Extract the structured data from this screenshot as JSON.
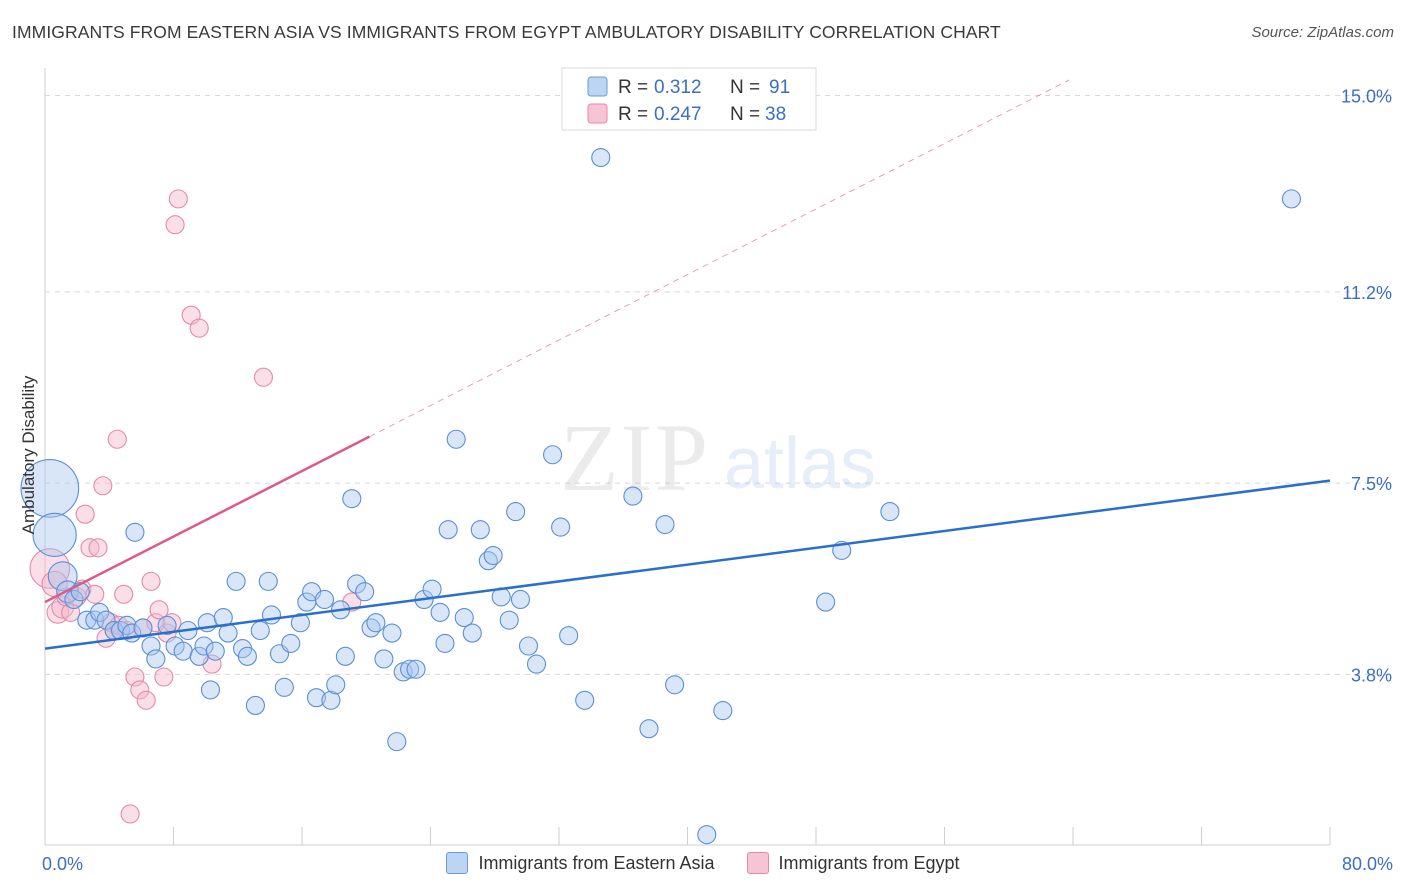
{
  "header": {
    "title": "IMMIGRANTS FROM EASTERN ASIA VS IMMIGRANTS FROM EGYPT AMBULATORY DISABILITY CORRELATION CHART",
    "source": "Source: ZipAtlas.com"
  },
  "watermark": {
    "zip": "ZIP",
    "atlas": "atlas"
  },
  "colors": {
    "blue_fill": "#a8c8f0",
    "blue_stroke": "#5a8fd6",
    "blue_line": "#2a6fcc",
    "pink_fill": "#f6b8cc",
    "pink_stroke": "#e58aa6",
    "pink_line": "#e0588a",
    "axis_label": "#3a6fc4",
    "grid": "#d8d8d8"
  },
  "chart_data": {
    "type": "scatter",
    "title": "IMMIGRANTS FROM EASTERN ASIA VS IMMIGRANTS FROM EGYPT AMBULATORY DISABILITY CORRELATION CHART",
    "xlabel": "",
    "ylabel": "Ambulatory Disability",
    "xlim": [
      0,
      80
    ],
    "ylim": [
      0.5,
      15.3
    ],
    "x_tick_labels": [
      "0.0%",
      "80.0%"
    ],
    "y_ticks": [
      3.8,
      7.5,
      11.2,
      15.0
    ],
    "y_tick_labels": [
      "3.8%",
      "7.5%",
      "11.2%",
      "15.0%"
    ],
    "grid": true,
    "legend_position": "top-center",
    "legend": [
      {
        "r_label": "R =",
        "r_value": "0.312",
        "n_label": "N =",
        "n_value": "91"
      },
      {
        "r_label": "R =",
        "r_value": "0.247",
        "n_label": "N =",
        "n_value": "38"
      }
    ],
    "series": [
      {
        "name": "Immigrants from Eastern Asia",
        "color": "#a8c8f0",
        "trend": {
          "x0": 0,
          "y0": 4.3,
          "x1": 80,
          "y1": 7.55,
          "dashed": false
        },
        "points": [
          {
            "x": 0.3,
            "y": 7.4,
            "s": 3.2
          },
          {
            "x": 0.6,
            "y": 6.5,
            "s": 2.4
          },
          {
            "x": 1.1,
            "y": 5.7,
            "s": 1.6
          },
          {
            "x": 1.4,
            "y": 5.4,
            "s": 1.2
          },
          {
            "x": 1.8,
            "y": 5.25,
            "s": 1
          },
          {
            "x": 2.2,
            "y": 5.4,
            "s": 1
          },
          {
            "x": 2.6,
            "y": 4.85,
            "s": 1
          },
          {
            "x": 3.1,
            "y": 4.85,
            "s": 1
          },
          {
            "x": 3.4,
            "y": 5.0,
            "s": 1
          },
          {
            "x": 3.8,
            "y": 4.85,
            "s": 1
          },
          {
            "x": 4.3,
            "y": 4.65,
            "s": 1
          },
          {
            "x": 4.7,
            "y": 4.65,
            "s": 1
          },
          {
            "x": 5.1,
            "y": 4.75,
            "s": 1
          },
          {
            "x": 5.4,
            "y": 4.6,
            "s": 1
          },
          {
            "x": 5.6,
            "y": 6.55,
            "s": 1
          },
          {
            "x": 6.1,
            "y": 4.7,
            "s": 1
          },
          {
            "x": 6.6,
            "y": 4.35,
            "s": 1
          },
          {
            "x": 6.9,
            "y": 4.1,
            "s": 1
          },
          {
            "x": 7.6,
            "y": 4.75,
            "s": 1
          },
          {
            "x": 8.1,
            "y": 4.35,
            "s": 1
          },
          {
            "x": 8.6,
            "y": 4.25,
            "s": 1
          },
          {
            "x": 8.9,
            "y": 4.65,
            "s": 1
          },
          {
            "x": 9.6,
            "y": 4.15,
            "s": 1
          },
          {
            "x": 9.9,
            "y": 4.35,
            "s": 1
          },
          {
            "x": 10.1,
            "y": 4.8,
            "s": 1
          },
          {
            "x": 10.3,
            "y": 3.5,
            "s": 1
          },
          {
            "x": 10.6,
            "y": 4.25,
            "s": 1
          },
          {
            "x": 11.1,
            "y": 4.9,
            "s": 1
          },
          {
            "x": 11.4,
            "y": 4.6,
            "s": 1
          },
          {
            "x": 11.9,
            "y": 5.6,
            "s": 1
          },
          {
            "x": 12.3,
            "y": 4.3,
            "s": 1
          },
          {
            "x": 12.6,
            "y": 4.15,
            "s": 1
          },
          {
            "x": 13.1,
            "y": 3.2,
            "s": 1
          },
          {
            "x": 13.4,
            "y": 4.65,
            "s": 1
          },
          {
            "x": 13.9,
            "y": 5.6,
            "s": 1
          },
          {
            "x": 14.1,
            "y": 4.95,
            "s": 1
          },
          {
            "x": 14.6,
            "y": 4.2,
            "s": 1
          },
          {
            "x": 14.9,
            "y": 3.55,
            "s": 1
          },
          {
            "x": 15.3,
            "y": 4.4,
            "s": 1
          },
          {
            "x": 15.9,
            "y": 4.8,
            "s": 1
          },
          {
            "x": 16.3,
            "y": 5.2,
            "s": 1
          },
          {
            "x": 16.6,
            "y": 5.4,
            "s": 1
          },
          {
            "x": 16.9,
            "y": 3.35,
            "s": 1
          },
          {
            "x": 17.4,
            "y": 5.25,
            "s": 1
          },
          {
            "x": 17.8,
            "y": 3.3,
            "s": 1
          },
          {
            "x": 18.1,
            "y": 3.6,
            "s": 1
          },
          {
            "x": 18.4,
            "y": 5.05,
            "s": 1
          },
          {
            "x": 18.7,
            "y": 4.15,
            "s": 1
          },
          {
            "x": 19.1,
            "y": 7.2,
            "s": 1
          },
          {
            "x": 19.4,
            "y": 5.55,
            "s": 1
          },
          {
            "x": 19.9,
            "y": 5.4,
            "s": 1
          },
          {
            "x": 20.3,
            "y": 4.7,
            "s": 1
          },
          {
            "x": 20.6,
            "y": 4.8,
            "s": 1
          },
          {
            "x": 21.1,
            "y": 4.1,
            "s": 1
          },
          {
            "x": 21.6,
            "y": 4.6,
            "s": 1
          },
          {
            "x": 21.9,
            "y": 2.5,
            "s": 1
          },
          {
            "x": 22.3,
            "y": 3.85,
            "s": 1
          },
          {
            "x": 22.7,
            "y": 3.9,
            "s": 1
          },
          {
            "x": 23.1,
            "y": 3.9,
            "s": 1
          },
          {
            "x": 23.6,
            "y": 5.25,
            "s": 1
          },
          {
            "x": 24.1,
            "y": 5.45,
            "s": 1
          },
          {
            "x": 24.6,
            "y": 5.0,
            "s": 1
          },
          {
            "x": 24.9,
            "y": 4.4,
            "s": 1
          },
          {
            "x": 25.1,
            "y": 6.6,
            "s": 1
          },
          {
            "x": 25.6,
            "y": 8.35,
            "s": 1
          },
          {
            "x": 26.1,
            "y": 4.9,
            "s": 1
          },
          {
            "x": 26.6,
            "y": 4.6,
            "s": 1
          },
          {
            "x": 27.1,
            "y": 6.6,
            "s": 1
          },
          {
            "x": 27.6,
            "y": 6.0,
            "s": 1
          },
          {
            "x": 27.9,
            "y": 6.1,
            "s": 1
          },
          {
            "x": 28.4,
            "y": 5.3,
            "s": 1
          },
          {
            "x": 28.9,
            "y": 4.85,
            "s": 1
          },
          {
            "x": 29.3,
            "y": 6.95,
            "s": 1
          },
          {
            "x": 29.6,
            "y": 5.25,
            "s": 1
          },
          {
            "x": 30.1,
            "y": 4.35,
            "s": 1
          },
          {
            "x": 30.6,
            "y": 4.0,
            "s": 1
          },
          {
            "x": 31.6,
            "y": 8.05,
            "s": 1
          },
          {
            "x": 32.1,
            "y": 6.65,
            "s": 1
          },
          {
            "x": 32.6,
            "y": 4.55,
            "s": 1
          },
          {
            "x": 33.6,
            "y": 3.3,
            "s": 1
          },
          {
            "x": 34.6,
            "y": 13.8,
            "s": 1
          },
          {
            "x": 36.6,
            "y": 7.25,
            "s": 1
          },
          {
            "x": 37.6,
            "y": 2.75,
            "s": 1
          },
          {
            "x": 38.6,
            "y": 6.7,
            "s": 1
          },
          {
            "x": 39.2,
            "y": 3.6,
            "s": 1
          },
          {
            "x": 41.2,
            "y": 0.7,
            "s": 1
          },
          {
            "x": 42.2,
            "y": 3.1,
            "s": 1
          },
          {
            "x": 48.6,
            "y": 5.2,
            "s": 1
          },
          {
            "x": 49.6,
            "y": 6.2,
            "s": 1
          },
          {
            "x": 52.6,
            "y": 6.95,
            "s": 1
          },
          {
            "x": 77.6,
            "y": 13.0,
            "s": 1
          }
        ]
      },
      {
        "name": "Immigrants from Egypt",
        "color": "#f6b8cc",
        "trend": {
          "x0": 0,
          "y0": 5.2,
          "x1": 20.2,
          "y1": 8.4,
          "dashed": true,
          "dash_to_x": 80
        },
        "points": [
          {
            "x": 0.3,
            "y": 5.85,
            "s": 2.2
          },
          {
            "x": 0.6,
            "y": 5.55,
            "s": 1.4
          },
          {
            "x": 0.8,
            "y": 5.0,
            "s": 1.2
          },
          {
            "x": 1.1,
            "y": 5.1,
            "s": 1.2
          },
          {
            "x": 1.3,
            "y": 5.3,
            "s": 1
          },
          {
            "x": 1.6,
            "y": 5.0,
            "s": 1
          },
          {
            "x": 2.0,
            "y": 5.3,
            "s": 1
          },
          {
            "x": 2.3,
            "y": 5.45,
            "s": 1
          },
          {
            "x": 2.5,
            "y": 6.9,
            "s": 1
          },
          {
            "x": 2.8,
            "y": 6.25,
            "s": 1
          },
          {
            "x": 3.1,
            "y": 5.35,
            "s": 1
          },
          {
            "x": 3.3,
            "y": 6.25,
            "s": 1
          },
          {
            "x": 3.6,
            "y": 7.45,
            "s": 1
          },
          {
            "x": 3.8,
            "y": 4.5,
            "s": 1
          },
          {
            "x": 4.1,
            "y": 4.8,
            "s": 1
          },
          {
            "x": 4.3,
            "y": 4.65,
            "s": 1
          },
          {
            "x": 4.6,
            "y": 4.75,
            "s": 1
          },
          {
            "x": 4.9,
            "y": 5.35,
            "s": 1
          },
          {
            "x": 5.1,
            "y": 4.65,
            "s": 1
          },
          {
            "x": 5.3,
            "y": 1.1,
            "s": 1
          },
          {
            "x": 5.6,
            "y": 3.75,
            "s": 1
          },
          {
            "x": 5.9,
            "y": 3.5,
            "s": 1
          },
          {
            "x": 6.1,
            "y": 4.7,
            "s": 1
          },
          {
            "x": 6.3,
            "y": 3.3,
            "s": 1
          },
          {
            "x": 6.6,
            "y": 5.6,
            "s": 1
          },
          {
            "x": 6.9,
            "y": 4.8,
            "s": 1
          },
          {
            "x": 7.1,
            "y": 5.05,
            "s": 1
          },
          {
            "x": 7.4,
            "y": 3.75,
            "s": 1
          },
          {
            "x": 7.6,
            "y": 4.6,
            "s": 1
          },
          {
            "x": 7.9,
            "y": 4.8,
            "s": 1
          },
          {
            "x": 8.1,
            "y": 12.5,
            "s": 1
          },
          {
            "x": 8.3,
            "y": 13.0,
            "s": 1
          },
          {
            "x": 9.1,
            "y": 10.75,
            "s": 1
          },
          {
            "x": 9.6,
            "y": 10.5,
            "s": 1
          },
          {
            "x": 10.4,
            "y": 4.0,
            "s": 1
          },
          {
            "x": 13.6,
            "y": 9.55,
            "s": 1
          },
          {
            "x": 4.5,
            "y": 8.35,
            "s": 1
          },
          {
            "x": 19.1,
            "y": 5.2,
            "s": 1
          }
        ]
      }
    ]
  }
}
